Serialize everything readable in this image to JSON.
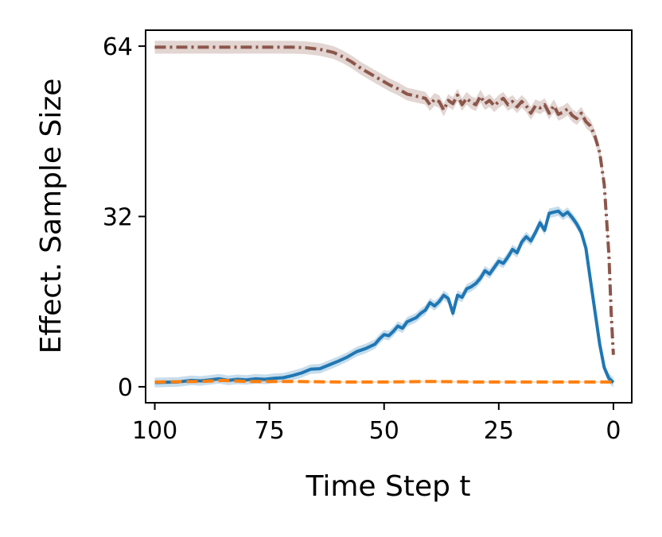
{
  "chart_data": {
    "type": "line",
    "xlabel": "Time Step t",
    "ylabel": "Effect. Sample Size",
    "xlim": [
      102,
      -4
    ],
    "ylim": [
      -3,
      67
    ],
    "x_inverted": true,
    "xticks": [
      100,
      75,
      50,
      25,
      0
    ],
    "yticks": [
      0,
      32,
      64
    ],
    "grid": false,
    "series": [
      {
        "color": "#8c564b",
        "linestyle": "dashdot",
        "band": 1.2,
        "points": [
          [
            100,
            63.8
          ],
          [
            95,
            63.8
          ],
          [
            90,
            63.8
          ],
          [
            85,
            63.8
          ],
          [
            80,
            63.8
          ],
          [
            75,
            63.8
          ],
          [
            70,
            63.8
          ],
          [
            67,
            63.7
          ],
          [
            64,
            63.4
          ],
          [
            61,
            62.8
          ],
          [
            59,
            62.0
          ],
          [
            57,
            61.0
          ],
          [
            55,
            59.8
          ],
          [
            53,
            58.8
          ],
          [
            51,
            57.8
          ],
          [
            49,
            56.8
          ],
          [
            47,
            56.0
          ],
          [
            45,
            55.0
          ],
          [
            43,
            54.6
          ],
          [
            41,
            54.2
          ],
          [
            40,
            53.0
          ],
          [
            39,
            54.0
          ],
          [
            38,
            53.6
          ],
          [
            37,
            52.0
          ],
          [
            36,
            53.8
          ],
          [
            35,
            53.2
          ],
          [
            34,
            54.8
          ],
          [
            33,
            53.0
          ],
          [
            32,
            54.2
          ],
          [
            31,
            53.4
          ],
          [
            30,
            53.0
          ],
          [
            29,
            54.6
          ],
          [
            28,
            53.2
          ],
          [
            27,
            53.8
          ],
          [
            26,
            52.8
          ],
          [
            25,
            53.6
          ],
          [
            24,
            54.2
          ],
          [
            23,
            53.0
          ],
          [
            22,
            53.6
          ],
          [
            21,
            52.6
          ],
          [
            20,
            53.6
          ],
          [
            19,
            52.8
          ],
          [
            18,
            51.4
          ],
          [
            17,
            52.8
          ],
          [
            16,
            52.4
          ],
          [
            15,
            53.0
          ],
          [
            14,
            51.4
          ],
          [
            13,
            52.8
          ],
          [
            12,
            51.2
          ],
          [
            11,
            51.6
          ],
          [
            10,
            52.2
          ],
          [
            9,
            51.0
          ],
          [
            8,
            50.4
          ],
          [
            7,
            51.4
          ],
          [
            6,
            49.8
          ],
          [
            5,
            49.0
          ],
          [
            4,
            47.0
          ],
          [
            3,
            44.0
          ],
          [
            2,
            38.0
          ],
          [
            1,
            25.0
          ],
          [
            0.5,
            14.0
          ],
          [
            0,
            6.0
          ]
        ]
      },
      {
        "color": "#1f77b4",
        "linestyle": "solid",
        "band": 0.9,
        "points": [
          [
            100,
            0.8
          ],
          [
            95,
            0.9
          ],
          [
            92,
            1.2
          ],
          [
            90,
            1.1
          ],
          [
            88,
            1.3
          ],
          [
            86,
            1.5
          ],
          [
            84,
            1.2
          ],
          [
            82,
            1.4
          ],
          [
            80,
            1.3
          ],
          [
            78,
            1.5
          ],
          [
            76,
            1.4
          ],
          [
            74,
            1.6
          ],
          [
            72,
            1.7
          ],
          [
            70,
            2.1
          ],
          [
            68,
            2.6
          ],
          [
            66,
            3.3
          ],
          [
            64,
            3.4
          ],
          [
            62,
            4.1
          ],
          [
            60,
            4.8
          ],
          [
            58,
            5.6
          ],
          [
            56,
            6.6
          ],
          [
            54,
            7.2
          ],
          [
            52,
            8.0
          ],
          [
            51,
            9.0
          ],
          [
            50,
            9.8
          ],
          [
            49,
            9.6
          ],
          [
            48,
            10.4
          ],
          [
            47,
            11.4
          ],
          [
            46,
            11.0
          ],
          [
            45,
            12.2
          ],
          [
            44,
            12.6
          ],
          [
            43,
            13.0
          ],
          [
            42,
            13.8
          ],
          [
            41,
            14.4
          ],
          [
            40,
            15.8
          ],
          [
            39,
            15.2
          ],
          [
            38,
            16.0
          ],
          [
            37,
            17.2
          ],
          [
            36,
            16.6
          ],
          [
            35,
            13.8
          ],
          [
            34,
            17.2
          ],
          [
            33,
            16.8
          ],
          [
            32,
            18.4
          ],
          [
            31,
            18.8
          ],
          [
            30,
            19.4
          ],
          [
            29,
            20.4
          ],
          [
            28,
            21.8
          ],
          [
            27,
            21.2
          ],
          [
            26,
            22.4
          ],
          [
            25,
            23.6
          ],
          [
            24,
            23.2
          ],
          [
            23,
            24.4
          ],
          [
            22,
            25.8
          ],
          [
            21,
            25.2
          ],
          [
            20,
            27.2
          ],
          [
            19,
            28.2
          ],
          [
            18,
            27.4
          ],
          [
            17,
            29.0
          ],
          [
            16,
            30.8
          ],
          [
            15,
            29.4
          ],
          [
            14,
            32.6
          ],
          [
            13,
            32.8
          ],
          [
            12,
            33.0
          ],
          [
            11,
            32.2
          ],
          [
            10,
            32.8
          ],
          [
            9,
            31.8
          ],
          [
            8,
            30.6
          ],
          [
            7,
            29.0
          ],
          [
            6,
            26.0
          ],
          [
            5,
            20.0
          ],
          [
            4,
            14.0
          ],
          [
            3,
            8.0
          ],
          [
            2,
            3.6
          ],
          [
            1,
            1.6
          ],
          [
            0,
            0.8
          ]
        ]
      },
      {
        "color": "#ff7f0e",
        "linestyle": "dashed",
        "band": 0.15,
        "points": [
          [
            100,
            0.9
          ],
          [
            90,
            1.0
          ],
          [
            85,
            1.2
          ],
          [
            80,
            1.0
          ],
          [
            70,
            1.0
          ],
          [
            60,
            0.9
          ],
          [
            50,
            0.9
          ],
          [
            40,
            1.0
          ],
          [
            30,
            0.9
          ],
          [
            20,
            0.9
          ],
          [
            10,
            0.9
          ],
          [
            0,
            0.9
          ]
        ]
      }
    ]
  }
}
